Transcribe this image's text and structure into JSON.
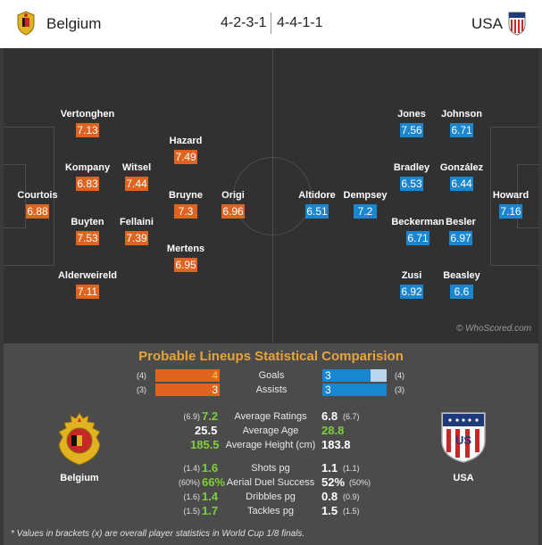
{
  "header": {
    "home_team": "Belgium",
    "away_team": "USA",
    "home_formation": "4-2-3-1",
    "away_formation": "4-4-1-1"
  },
  "pitch": {
    "watermark": "© WhoScored.com",
    "home_players": [
      {
        "name": "Vertonghen",
        "rating": "7.13"
      },
      {
        "name": "Kompany",
        "rating": "6.83"
      },
      {
        "name": "Witsel",
        "rating": "7.44"
      },
      {
        "name": "Hazard",
        "rating": "7.49"
      },
      {
        "name": "Courtois",
        "rating": "6.88"
      },
      {
        "name": "Bruyne",
        "rating": "7.3"
      },
      {
        "name": "Origi",
        "rating": "6.96"
      },
      {
        "name": "Buyten",
        "rating": "7.53"
      },
      {
        "name": "Fellaini",
        "rating": "7.39"
      },
      {
        "name": "Mertens",
        "rating": "6.95"
      },
      {
        "name": "Alderweireld",
        "rating": "7.11"
      }
    ],
    "away_players": [
      {
        "name": "Jones",
        "rating": "7.56"
      },
      {
        "name": "Johnson",
        "rating": "6.71"
      },
      {
        "name": "Bradley",
        "rating": "6.53"
      },
      {
        "name": "González",
        "rating": "6.44"
      },
      {
        "name": "Altidore",
        "rating": "6.51"
      },
      {
        "name": "Dempsey",
        "rating": "7.2"
      },
      {
        "name": "Howard",
        "rating": "7.16"
      },
      {
        "name": "Beckerman",
        "rating": "6.71"
      },
      {
        "name": "Besler",
        "rating": "6.97"
      },
      {
        "name": "Zusi",
        "rating": "6.92"
      },
      {
        "name": "Beasley",
        "rating": "6.6"
      }
    ]
  },
  "stats": {
    "title": "Probable Lineups Statistical Comparision",
    "home_label": "Belgium",
    "away_label": "USA",
    "bars": [
      {
        "label": "Goals",
        "home": "4",
        "home_bracket": "(4)",
        "away": "3",
        "away_bracket": "(4)",
        "home_value": 4,
        "away_value": 3,
        "max": 4
      },
      {
        "label": "Assists",
        "home": "3",
        "home_bracket": "(3)",
        "away": "3",
        "away_bracket": "(3)",
        "home_value": 3,
        "away_value": 3,
        "max": 3
      }
    ],
    "rows": [
      {
        "label": "Average Ratings",
        "home_bracket": "(6.9)",
        "home": "7.2",
        "away": "6.8",
        "away_bracket": "(6.7)",
        "home_better": true
      },
      {
        "label": "Average Age",
        "home_bracket": "",
        "home": "25.5",
        "away": "28.8",
        "away_bracket": "",
        "home_better": false
      },
      {
        "label": "Average Height (cm)",
        "home_bracket": "",
        "home": "185.5",
        "away": "183.8",
        "away_bracket": "",
        "home_better": true
      },
      {
        "label": "Shots pg",
        "home_bracket": "(1.4)",
        "home": "1.6",
        "away": "1.1",
        "away_bracket": "(1.1)",
        "home_better": true
      },
      {
        "label": "Aerial Duel Success",
        "home_bracket": "(60%)",
        "home": "66%",
        "away": "52%",
        "away_bracket": "(50%)",
        "home_better": true
      },
      {
        "label": "Dribbles pg",
        "home_bracket": "(1.6)",
        "home": "1.4",
        "away": "0.8",
        "away_bracket": "(0.9)",
        "home_better": true
      },
      {
        "label": "Tackles pg",
        "home_bracket": "(1.5)",
        "home": "1.7",
        "away": "1.5",
        "away_bracket": "(1.5)",
        "home_better": true
      }
    ],
    "footnote": "* Values in brackets (x) are overall player statistics in World Cup 1/8 finals."
  },
  "colors": {
    "home_accent": "#e0641f",
    "away_accent": "#1b86d0",
    "better_value": "#7fcf3a",
    "title": "#e8a33a"
  },
  "icons": {
    "home_crest": "belgium-crest-icon",
    "away_crest": "usa-crest-icon"
  }
}
